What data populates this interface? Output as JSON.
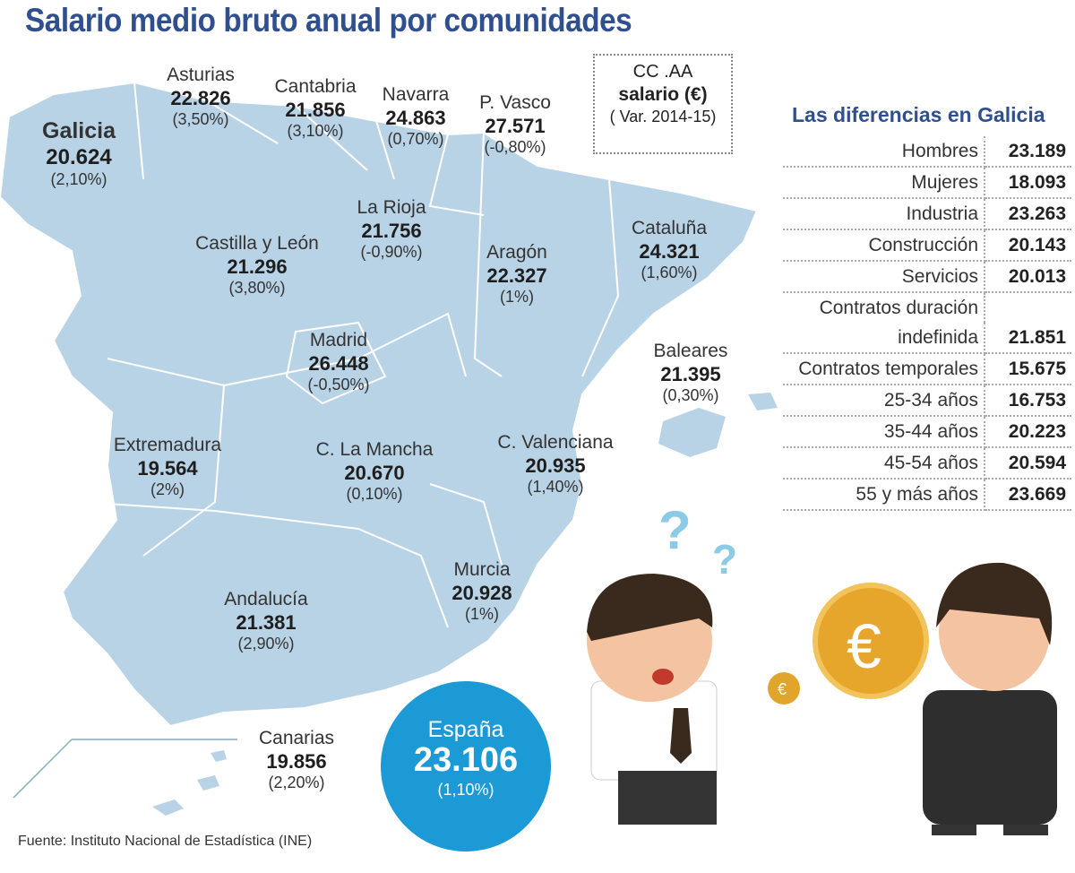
{
  "title": "Salario medio bruto anual por comunidades",
  "legend": {
    "line1": "CC .AA",
    "line2": "salario (€)",
    "line3": "( Var. 2014-15)"
  },
  "map_color": "#b9d3e6",
  "accent_color": "#1b9ad5",
  "title_color": "#2f4f8f",
  "regions": [
    {
      "name": "Galicia",
      "value": "20.624",
      "change": "(2,10%)"
    },
    {
      "name": "Asturias",
      "value": "22.826",
      "change": "(3,50%)"
    },
    {
      "name": "Cantabria",
      "value": "21.856",
      "change": "(3,10%)"
    },
    {
      "name": "Navarra",
      "value": "24.863",
      "change": "(0,70%)"
    },
    {
      "name": "P. Vasco",
      "value": "27.571",
      "change": "(-0,80%)"
    },
    {
      "name": "La Rioja",
      "value": "21.756",
      "change": "(-0,90%)"
    },
    {
      "name": "Castilla y León",
      "value": "21.296",
      "change": "(3,80%)"
    },
    {
      "name": "Aragón",
      "value": "22.327",
      "change": "(1%)"
    },
    {
      "name": "Cataluña",
      "value": "24.321",
      "change": "(1,60%)"
    },
    {
      "name": "Madrid",
      "value": "26.448",
      "change": "(-0,50%)"
    },
    {
      "name": "Baleares",
      "value": "21.395",
      "change": "(0,30%)"
    },
    {
      "name": "Extremadura",
      "value": "19.564",
      "change": "(2%)"
    },
    {
      "name": "C. La Mancha",
      "value": "20.670",
      "change": "(0,10%)"
    },
    {
      "name": "C. Valenciana",
      "value": "20.935",
      "change": "(1,40%)"
    },
    {
      "name": "Murcia",
      "value": "20.928",
      "change": "(1%)"
    },
    {
      "name": "Andalucía",
      "value": "21.381",
      "change": "(2,90%)"
    },
    {
      "name": "Canarias",
      "value": "19.856",
      "change": "(2,20%)"
    }
  ],
  "spain": {
    "name": "España",
    "value": "23.106",
    "change": "(1,10%)"
  },
  "galicia_table": {
    "title": "Las diferencias en Galicia",
    "rows": [
      {
        "label": "Hombres",
        "value": "23.189"
      },
      {
        "label": "Mujeres",
        "value": "18.093"
      },
      {
        "label": "Industria",
        "value": "23.263"
      },
      {
        "label": "Construcción",
        "value": "20.143"
      },
      {
        "label": "Servicios",
        "value": "20.013"
      },
      {
        "label": "Contratos duración",
        "label2": "indefinida",
        "value": "21.851"
      },
      {
        "label": "Contratos temporales",
        "value": "15.675"
      },
      {
        "label": "25-34 años",
        "value": "16.753"
      },
      {
        "label": "35-44 años",
        "value": "20.223"
      },
      {
        "label": "45-54 años",
        "value": "20.594"
      },
      {
        "label": "55 y más años",
        "value": "23.669"
      }
    ]
  },
  "source": "Fuente: Instituto Nacional de Estadística (INE)"
}
